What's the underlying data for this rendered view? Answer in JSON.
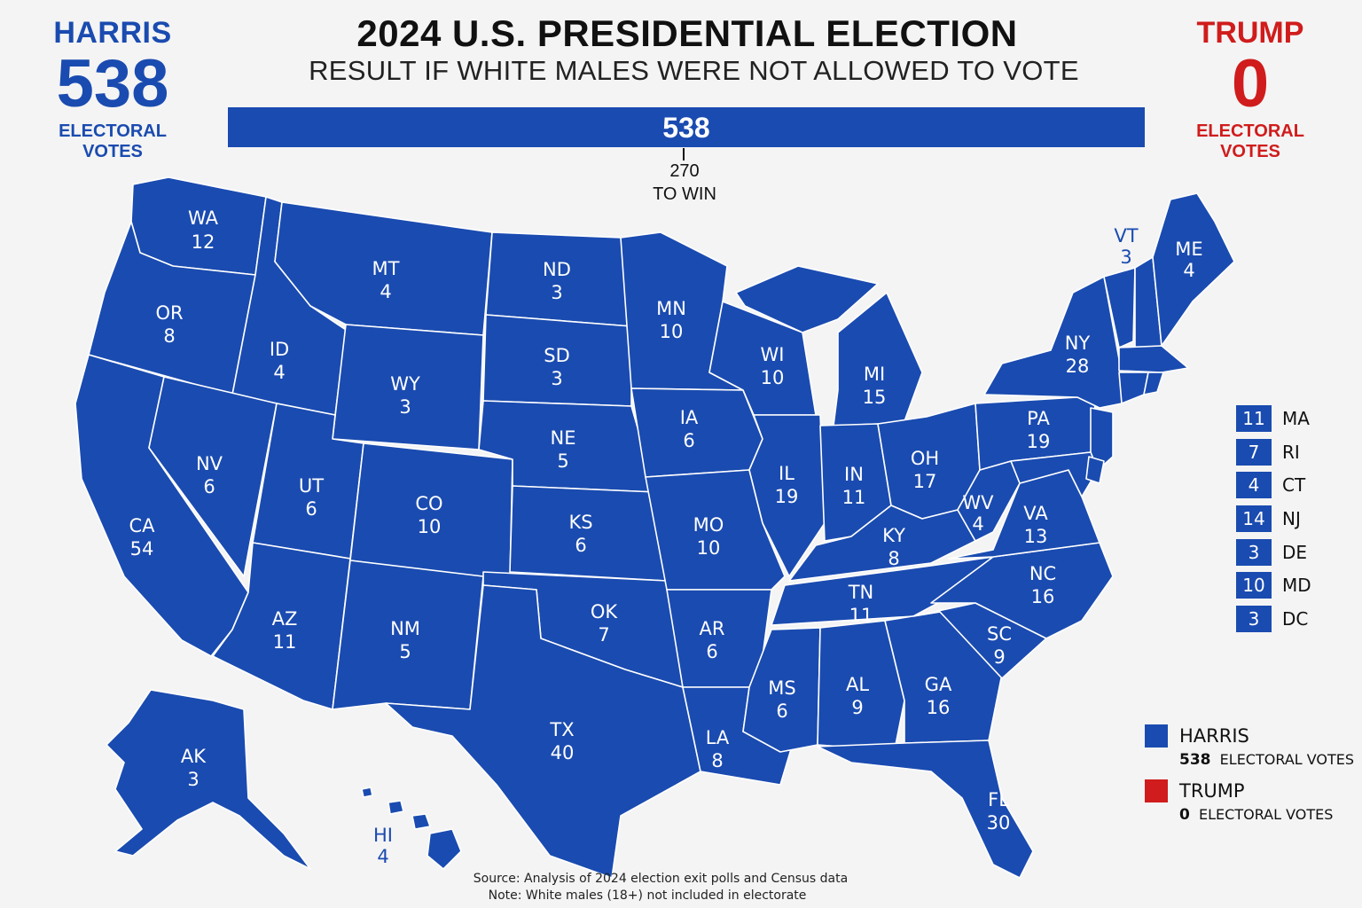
{
  "header": {
    "title": "2024 U.S. PRESIDENTIAL ELECTION",
    "subtitle": "RESULT IF WHITE MALES WERE NOT ALLOWED TO VOTE"
  },
  "harris": {
    "name": "HARRIS",
    "votes": "538",
    "label": "ELECTORAL VOTES",
    "color": "#1a4bb0"
  },
  "trump": {
    "name": "TRUMP",
    "votes": "0",
    "label": "ELECTORAL VOTES",
    "color": "#d01c1c"
  },
  "bar": {
    "value": "538",
    "fill_fraction": 1.0
  },
  "win_marker": {
    "number": "270",
    "label": "TO WIN"
  },
  "states": [
    {
      "abbr": "WA",
      "ev": "12"
    },
    {
      "abbr": "OR",
      "ev": "8"
    },
    {
      "abbr": "CA",
      "ev": "54"
    },
    {
      "abbr": "ID",
      "ev": "4"
    },
    {
      "abbr": "NV",
      "ev": "6"
    },
    {
      "abbr": "MT",
      "ev": "4"
    },
    {
      "abbr": "WY",
      "ev": "3"
    },
    {
      "abbr": "UT",
      "ev": "6"
    },
    {
      "abbr": "AZ",
      "ev": "11"
    },
    {
      "abbr": "CO",
      "ev": "10"
    },
    {
      "abbr": "NM",
      "ev": "5"
    },
    {
      "abbr": "ND",
      "ev": "3"
    },
    {
      "abbr": "SD",
      "ev": "3"
    },
    {
      "abbr": "NE",
      "ev": "5"
    },
    {
      "abbr": "KS",
      "ev": "6"
    },
    {
      "abbr": "OK",
      "ev": "7"
    },
    {
      "abbr": "TX",
      "ev": "40"
    },
    {
      "abbr": "MN",
      "ev": "10"
    },
    {
      "abbr": "IA",
      "ev": "6"
    },
    {
      "abbr": "MO",
      "ev": "10"
    },
    {
      "abbr": "AR",
      "ev": "6"
    },
    {
      "abbr": "LA",
      "ev": "8"
    },
    {
      "abbr": "WI",
      "ev": "10"
    },
    {
      "abbr": "IL",
      "ev": "19"
    },
    {
      "abbr": "MI",
      "ev": "15"
    },
    {
      "abbr": "IN",
      "ev": "11"
    },
    {
      "abbr": "OH",
      "ev": "17"
    },
    {
      "abbr": "KY",
      "ev": "8"
    },
    {
      "abbr": "TN",
      "ev": "11"
    },
    {
      "abbr": "MS",
      "ev": "6"
    },
    {
      "abbr": "AL",
      "ev": "9"
    },
    {
      "abbr": "GA",
      "ev": "16"
    },
    {
      "abbr": "FL",
      "ev": "30"
    },
    {
      "abbr": "SC",
      "ev": "9"
    },
    {
      "abbr": "NC",
      "ev": "16"
    },
    {
      "abbr": "VA",
      "ev": "13"
    },
    {
      "abbr": "WV",
      "ev": "4"
    },
    {
      "abbr": "PA",
      "ev": "19"
    },
    {
      "abbr": "NY",
      "ev": "28"
    },
    {
      "abbr": "ME",
      "ev": "4"
    },
    {
      "abbr": "VT",
      "ev": "3"
    },
    {
      "abbr": "AK",
      "ev": "3"
    },
    {
      "abbr": "HI",
      "ev": "4"
    }
  ],
  "small_states": [
    {
      "ev": "11",
      "abbr": "MA"
    },
    {
      "ev": "7",
      "abbr": "RI"
    },
    {
      "ev": "4",
      "abbr": "CT"
    },
    {
      "ev": "14",
      "abbr": "NJ"
    },
    {
      "ev": "3",
      "abbr": "DE"
    },
    {
      "ev": "10",
      "abbr": "MD"
    },
    {
      "ev": "3",
      "abbr": "DC"
    }
  ],
  "legend": [
    {
      "name": "HARRIS",
      "votes": "538",
      "label": "ELECTORAL VOTES",
      "color": "#1a4bb0"
    },
    {
      "name": "TRUMP",
      "votes": "0",
      "label": "ELECTORAL VOTES",
      "color": "#d01c1c"
    }
  ],
  "footer": {
    "source": "Source: Analysis of 2024 election exit polls and Census data",
    "note": "Note: White males (18+) not included in electorate"
  }
}
